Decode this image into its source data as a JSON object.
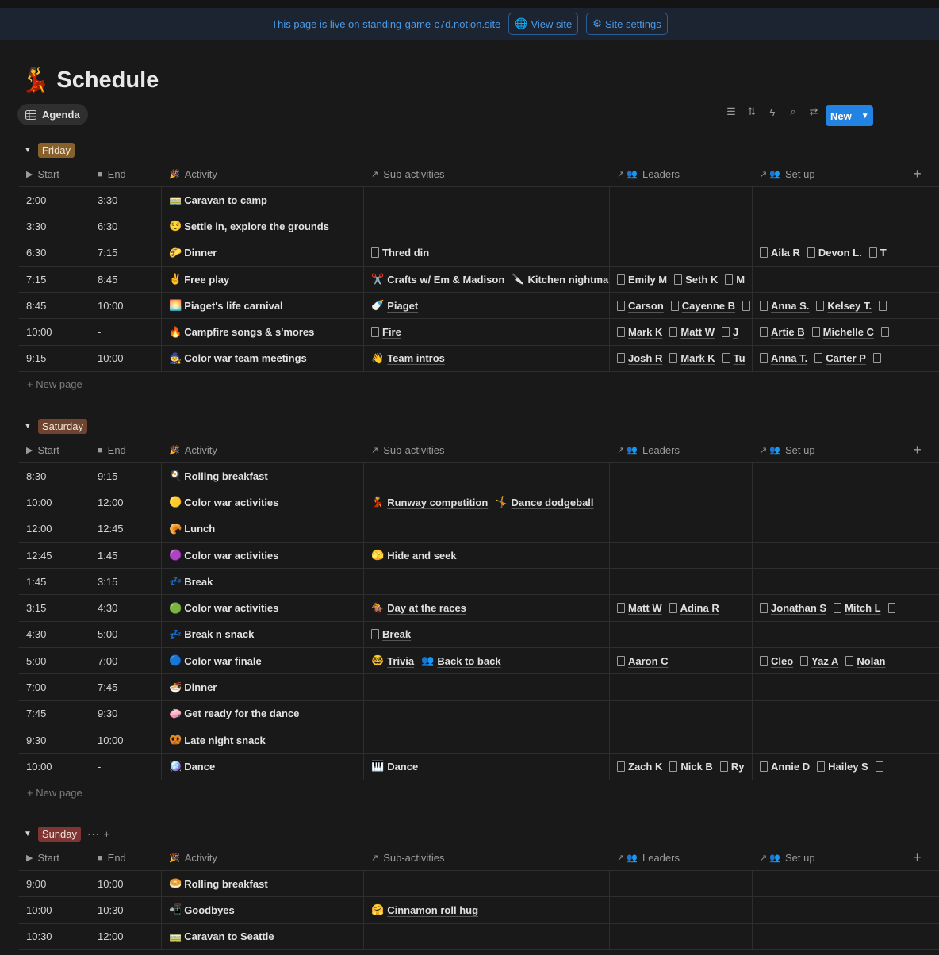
{
  "banner": {
    "text": "This page is live on standing-game-c7d.notion.site",
    "view_site": "View site",
    "site_settings": "Site settings"
  },
  "page": {
    "icon": "💃",
    "title": "Schedule"
  },
  "view": {
    "tab_label": "Agenda",
    "new_label": "New",
    "tool_icons": [
      "filter-icon",
      "sort-icon",
      "automation-icon",
      "search-icon",
      "settings-icon"
    ]
  },
  "columns": [
    "Start",
    "End",
    "Activity",
    "Sub-activities",
    "Leaders",
    "Set up"
  ],
  "new_page_label": "New page",
  "colors": {
    "accent": "#2383e2",
    "friday": "#87602a",
    "saturday": "#6e4430",
    "sunday": "#7f3534",
    "background": "#191919"
  },
  "groups": [
    {
      "name": "Friday",
      "rows": [
        {
          "start": "2:00",
          "end": "3:30",
          "emoji": "🚃",
          "activity": "Caravan to camp",
          "sub": [],
          "leaders": [],
          "setup": []
        },
        {
          "start": "3:30",
          "end": "6:30",
          "emoji": "😌",
          "activity": "Settle in, explore the grounds",
          "sub": [],
          "leaders": [],
          "setup": []
        },
        {
          "start": "6:30",
          "end": "7:15",
          "emoji": "🌮",
          "activity": "Dinner",
          "sub": [
            {
              "icon": "",
              "label": "Thred din"
            }
          ],
          "leaders": [],
          "setup": [
            "Aila R",
            "Devon L.",
            "T"
          ]
        },
        {
          "start": "7:15",
          "end": "8:45",
          "emoji": "✌️",
          "activity": "Free play",
          "sub": [
            {
              "icon": "✂️",
              "label": "Crafts w/ Em & Madison"
            },
            {
              "icon": "🔪",
              "label": "Kitchen nightmare"
            }
          ],
          "leaders": [
            "Emily M",
            "Seth K",
            "M"
          ],
          "setup": []
        },
        {
          "start": "8:45",
          "end": "10:00",
          "emoji": "🌅",
          "activity": "Piaget's life carnival",
          "sub": [
            {
              "icon": "🍼",
              "label": "Piaget"
            }
          ],
          "leaders": [
            "Carson",
            "Cayenne B",
            ""
          ],
          "setup": [
            "Anna S.",
            "Kelsey T.",
            ""
          ]
        },
        {
          "start": "10:00",
          "end": "-",
          "emoji": "🔥",
          "activity": "Campfire songs & s'mores",
          "sub": [
            {
              "icon": "",
              "label": "Fire"
            }
          ],
          "leaders": [
            "Mark K",
            "Matt W",
            "J"
          ],
          "setup": [
            "Artie B",
            "Michelle C",
            ""
          ]
        },
        {
          "start": "9:15",
          "end": "10:00",
          "emoji": "🧙",
          "activity": "Color war team meetings",
          "sub": [
            {
              "icon": "👋",
              "label": "Team intros"
            }
          ],
          "leaders": [
            "Josh R",
            "Mark K",
            "Tu"
          ],
          "setup": [
            "Anna T.",
            "Carter P",
            ""
          ]
        }
      ]
    },
    {
      "name": "Saturday",
      "rows": [
        {
          "start": "8:30",
          "end": "9:15",
          "emoji": "🍳",
          "activity": "Rolling breakfast",
          "sub": [],
          "leaders": [],
          "setup": []
        },
        {
          "start": "10:00",
          "end": "12:00",
          "emoji": "🟡",
          "activity": "Color war activities",
          "sub": [
            {
              "icon": "💃",
              "label": "Runway competition"
            },
            {
              "icon": "🤸",
              "label": "Dance dodgeball"
            }
          ],
          "leaders": [],
          "setup": []
        },
        {
          "start": "12:00",
          "end": "12:45",
          "emoji": "🥐",
          "activity": "Lunch",
          "sub": [],
          "leaders": [],
          "setup": []
        },
        {
          "start": "12:45",
          "end": "1:45",
          "emoji": "🟣",
          "activity": "Color war activities",
          "sub": [
            {
              "icon": "🫣",
              "label": "Hide and seek"
            }
          ],
          "leaders": [],
          "setup": []
        },
        {
          "start": "1:45",
          "end": "3:15",
          "emoji": "💤",
          "activity": "Break",
          "sub": [],
          "leaders": [],
          "setup": []
        },
        {
          "start": "3:15",
          "end": "4:30",
          "emoji": "🟢",
          "activity": "Color war activities",
          "sub": [
            {
              "icon": "🏇",
              "label": "Day at the races"
            }
          ],
          "leaders": [
            "Matt W",
            "Adina R"
          ],
          "setup": [
            "Jonathan S",
            "Mitch L",
            ""
          ]
        },
        {
          "start": "4:30",
          "end": "5:00",
          "emoji": "💤",
          "activity": "Break n snack",
          "sub": [
            {
              "icon": "",
              "label": "Break"
            }
          ],
          "leaders": [],
          "setup": []
        },
        {
          "start": "5:00",
          "end": "7:00",
          "emoji": "🔵",
          "activity": "Color war finale",
          "sub": [
            {
              "icon": "🤓",
              "label": "Trivia"
            },
            {
              "icon": "👥",
              "label": "Back to back"
            }
          ],
          "leaders": [
            "Aaron C"
          ],
          "setup": [
            "Cleo",
            "Yaz A",
            "Nolan"
          ]
        },
        {
          "start": "7:00",
          "end": "7:45",
          "emoji": "🍜",
          "activity": "Dinner",
          "sub": [],
          "leaders": [],
          "setup": []
        },
        {
          "start": "7:45",
          "end": "9:30",
          "emoji": "🧼",
          "activity": "Get ready for the dance",
          "sub": [],
          "leaders": [],
          "setup": []
        },
        {
          "start": "9:30",
          "end": "10:00",
          "emoji": "🥨",
          "activity": "Late night snack",
          "sub": [],
          "leaders": [],
          "setup": []
        },
        {
          "start": "10:00",
          "end": "-",
          "emoji": "🪩",
          "activity": "Dance",
          "sub": [
            {
              "icon": "🎹",
              "label": "Dance"
            }
          ],
          "leaders": [
            "Zach K",
            "Nick B",
            "Ry"
          ],
          "setup": [
            "Annie D",
            "Hailey S",
            ""
          ]
        }
      ]
    },
    {
      "name": "Sunday",
      "rows": [
        {
          "start": "9:00",
          "end": "10:00",
          "emoji": "🥯",
          "activity": "Rolling breakfast",
          "sub": [],
          "leaders": [],
          "setup": []
        },
        {
          "start": "10:00",
          "end": "10:30",
          "emoji": "📲",
          "activity": "Goodbyes",
          "sub": [
            {
              "icon": "🤗",
              "label": "Cinnamon roll hug"
            }
          ],
          "leaders": [],
          "setup": []
        },
        {
          "start": "10:30",
          "end": "12:00",
          "emoji": "🚃",
          "activity": "Caravan to Seattle",
          "sub": [],
          "leaders": [],
          "setup": []
        }
      ]
    }
  ]
}
